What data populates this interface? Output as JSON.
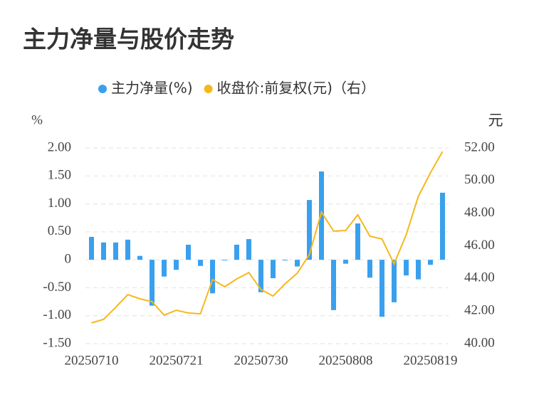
{
  "chart_data": {
    "type": "bar_line",
    "title": "主力净量与股价走势",
    "y_label": "%",
    "y2_label": "元",
    "categories": [
      "20250710",
      null,
      null,
      null,
      null,
      null,
      null,
      "20250721",
      null,
      null,
      null,
      null,
      null,
      null,
      "20250730",
      null,
      null,
      null,
      null,
      null,
      null,
      "20250808",
      null,
      null,
      null,
      null,
      null,
      null,
      "20250819",
      null
    ],
    "series": [
      {
        "name": "主力净量(%)",
        "type": "bar",
        "color": "#3aa0ee",
        "values": [
          0.41,
          0.31,
          0.31,
          0.36,
          0.07,
          -0.82,
          -0.3,
          -0.18,
          0.27,
          -0.11,
          -0.6,
          -0.01,
          0.27,
          0.37,
          -0.58,
          -0.33,
          -0.01,
          -0.12,
          1.07,
          1.58,
          -0.9,
          -0.07,
          0.65,
          -0.32,
          -1.02,
          -0.76,
          -0.28,
          -0.35,
          -0.09,
          1.2
        ]
      },
      {
        "name": "收盘价:前复权(元)（右）",
        "type": "line",
        "axis": "y2",
        "color": "#f5b81c",
        "values": [
          41.27,
          41.49,
          42.23,
          43.01,
          42.75,
          42.58,
          41.75,
          42.05,
          41.88,
          41.83,
          43.93,
          43.49,
          43.97,
          44.36,
          43.32,
          42.92,
          43.67,
          44.32,
          45.46,
          48.07,
          46.9,
          46.94,
          47.9,
          46.59,
          46.42,
          44.89,
          46.68,
          49.03,
          50.47,
          51.78
        ]
      }
    ],
    "ylim": [
      -1.5,
      2
    ],
    "yticks": [
      {
        "value": -1.5,
        "label": "-1.50"
      },
      {
        "value": -1,
        "label": "-1.00"
      },
      {
        "value": -0.5,
        "label": "-0.50"
      },
      0,
      {
        "value": 0.5,
        "label": "0.50"
      },
      {
        "value": 1,
        "label": "1.00"
      },
      {
        "value": 1.5,
        "label": "1.50"
      },
      {
        "value": 2,
        "label": "2.00"
      }
    ],
    "y2lim": [
      40,
      52
    ],
    "y2ticks": [
      {
        "value": 40,
        "label": "40.00"
      },
      {
        "value": 42,
        "label": "42.00"
      },
      {
        "value": 44,
        "label": "44.00"
      },
      {
        "value": 46,
        "label": "46.00"
      },
      {
        "value": 48,
        "label": "48.00"
      },
      {
        "value": 50,
        "label": "50.00"
      },
      {
        "value": 52,
        "label": "52.00"
      }
    ],
    "grid": true
  }
}
